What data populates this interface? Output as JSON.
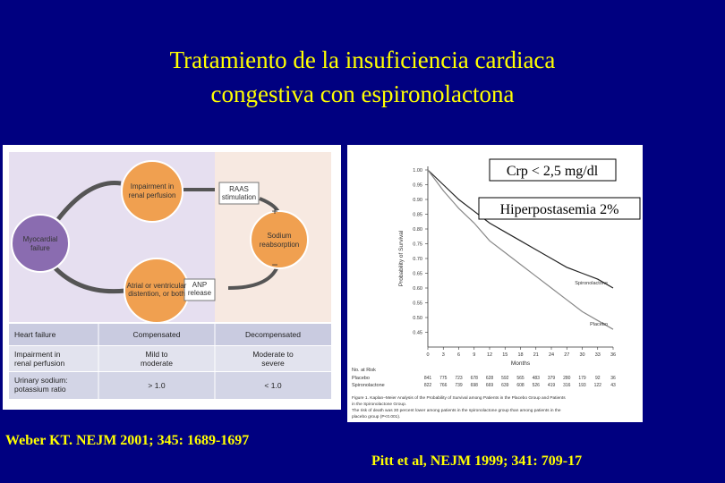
{
  "title": [
    "Tratamiento de la insuficiencia cardiaca",
    "congestiva con espironolactona"
  ],
  "diagram": {
    "nodes": [
      [
        "Impairment in",
        "renal perfusion"
      ],
      [
        "RAAS",
        "stimulation"
      ],
      [
        "Sodium",
        "reabsorption"
      ],
      [
        "Myocardial",
        "failure"
      ],
      [
        "Atrial or ventricular",
        "distention, or both"
      ],
      [
        "ANP",
        "release"
      ]
    ],
    "signs": [
      "+",
      "−"
    ],
    "table": {
      "rows": [
        [
          "Heart failure",
          "Compensated",
          "Decompensated"
        ],
        [
          [
            "Impairment in",
            "renal perfusion"
          ],
          [
            "Mild to",
            "moderate"
          ],
          [
            "Moderate to",
            "severe"
          ]
        ],
        [
          [
            "Urinary sodium:",
            "potassium ratio"
          ],
          "> 1.0",
          "< 1.0"
        ]
      ]
    }
  },
  "chart_data": {
    "type": "line",
    "ylabel": "Probability of Survival",
    "xlabel": "Months",
    "x": [
      0,
      3,
      6,
      9,
      12,
      15,
      18,
      21,
      24,
      27,
      30,
      33,
      36
    ],
    "xlim": [
      0,
      36
    ],
    "xticks": [
      0,
      3,
      6,
      9,
      12,
      15,
      18,
      21,
      24,
      27,
      30,
      33,
      36
    ],
    "ylim": [
      0.4,
      1.0
    ],
    "yticks": [
      {
        "value": 1,
        "label": "1.00"
      },
      0.95,
      {
        "value": 0.9,
        "label": "0.90"
      },
      0.85,
      {
        "value": 0.8,
        "label": "0.80"
      },
      0.75,
      {
        "value": 0.7,
        "label": "0.70"
      },
      0.65,
      {
        "value": 0.6,
        "label": "0.60"
      },
      0.55,
      {
        "value": 0.5,
        "label": "0.50"
      },
      0.45
    ],
    "series": [
      {
        "name": "Spironolactone",
        "color": "#222222",
        "values": [
          1.0,
          0.95,
          0.9,
          0.86,
          0.82,
          0.79,
          0.76,
          0.73,
          0.7,
          0.67,
          0.65,
          0.63,
          0.6
        ]
      },
      {
        "name": "Placebo",
        "color": "#888888",
        "values": [
          1.0,
          0.93,
          0.87,
          0.82,
          0.76,
          0.72,
          0.68,
          0.64,
          0.6,
          0.56,
          0.52,
          0.49,
          0.46
        ]
      }
    ],
    "risk": {
      "title": "No. at Risk",
      "rows": [
        {
          "name": "Placebo",
          "values": [
            841,
            775,
            723,
            678,
            628,
            592,
            565,
            483,
            379,
            280,
            179,
            92,
            36
          ]
        },
        {
          "name": "Spironolactone",
          "values": [
            822,
            766,
            739,
            698,
            669,
            639,
            608,
            526,
            419,
            316,
            193,
            122,
            43
          ]
        }
      ]
    },
    "caption": [
      "Figure 1. Kaplan–Meier Analysis of the Probability of Survival among Patients in the Placebo Group and Patients",
      "in the Spironolactone Group.",
      "The risk of death was 30 percent lower among patients in the spironolactone group than among patients in the",
      "placebo group (P<0.001)."
    ]
  },
  "notes": [
    "Crp < 2,5 mg/dl",
    "Hiperpostasemia 2%"
  ],
  "citations": [
    "Weber KT. NEJM 2001; 345: 1689-1697",
    "Pitt et al, NEJM 1999; 341: 709-17"
  ]
}
